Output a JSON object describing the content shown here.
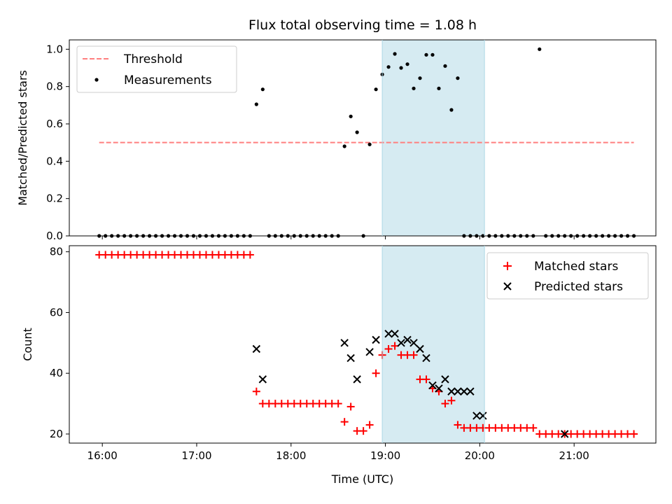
{
  "chart_data": [
    {
      "type": "scatter",
      "title": "Flux total observing time = 1.08 h",
      "xlabel": "",
      "ylabel": "Matched/Predicted stars",
      "ylim": [
        0,
        1.05
      ],
      "yticks": [
        0.0,
        0.2,
        0.4,
        0.6,
        0.8,
        1.0
      ],
      "ytick_labels": [
        "0.0",
        "0.2",
        "0.4",
        "0.6",
        "0.8",
        "1.0"
      ],
      "legend_position": "top-left",
      "highlight_span": {
        "start": "18:58",
        "end": "20:03",
        "color": "#add8e6"
      },
      "series": [
        {
          "name": "Threshold",
          "kind": "dashed-line",
          "color": "#ff7f7f",
          "x": [
            "15:58",
            "21:38"
          ],
          "values": [
            0.5,
            0.5
          ]
        },
        {
          "name": "Measurements",
          "kind": "dots",
          "color": "#000000",
          "x": [
            "15:58",
            "16:02",
            "16:06",
            "16:10",
            "16:14",
            "16:18",
            "16:22",
            "16:26",
            "16:30",
            "16:34",
            "16:38",
            "16:42",
            "16:46",
            "16:50",
            "16:54",
            "16:58",
            "17:02",
            "17:06",
            "17:10",
            "17:14",
            "17:18",
            "17:22",
            "17:26",
            "17:30",
            "17:34",
            "17:38",
            "17:42",
            "17:46",
            "17:50",
            "17:54",
            "17:58",
            "18:02",
            "18:06",
            "18:10",
            "18:14",
            "18:18",
            "18:22",
            "18:26",
            "18:30",
            "18:34",
            "18:38",
            "18:42",
            "18:46",
            "18:50",
            "18:54",
            "18:58",
            "19:02",
            "19:06",
            "19:10",
            "19:14",
            "19:18",
            "19:22",
            "19:26",
            "19:30",
            "19:34",
            "19:38",
            "19:42",
            "19:46",
            "19:50",
            "19:54",
            "19:58",
            "20:02",
            "20:06",
            "20:10",
            "20:14",
            "20:18",
            "20:22",
            "20:26",
            "20:30",
            "20:34",
            "20:38",
            "20:42",
            "20:46",
            "20:50",
            "20:54",
            "20:58",
            "21:02",
            "21:06",
            "21:10",
            "21:14",
            "21:18",
            "21:22",
            "21:26",
            "21:30",
            "21:34",
            "21:38"
          ],
          "values": [
            0,
            0,
            0,
            0,
            0,
            0,
            0,
            0,
            0,
            0,
            0,
            0,
            0,
            0,
            0,
            0,
            0,
            0,
            0,
            0,
            0,
            0,
            0,
            0,
            0,
            0.705,
            0.785,
            0,
            0,
            0,
            0,
            0,
            0,
            0,
            0,
            0,
            0,
            0,
            0,
            0.48,
            0.64,
            0.555,
            0,
            0.49,
            0.785,
            0.865,
            0.905,
            0.975,
            0.9,
            0.92,
            0.79,
            0.845,
            0.97,
            0.97,
            0.79,
            0.91,
            0.675,
            0.845,
            0,
            0,
            0,
            0,
            0,
            0,
            0,
            0,
            0,
            0,
            0,
            0,
            1.0,
            0,
            0,
            0,
            0,
            0,
            0,
            0,
            0,
            0,
            0,
            0,
            0,
            0,
            0,
            0
          ]
        }
      ]
    },
    {
      "type": "scatter",
      "title": "",
      "xlabel": "Time (UTC)",
      "ylabel": "Count",
      "ylim": [
        17,
        82
      ],
      "yticks": [
        20,
        40,
        60,
        80
      ],
      "ytick_labels": [
        "20",
        "40",
        "60",
        "80"
      ],
      "xticks": [
        "16:00",
        "17:00",
        "18:00",
        "19:00",
        "20:00",
        "21:00"
      ],
      "xtick_labels": [
        "16:00",
        "17:00",
        "18:00",
        "19:00",
        "20:00",
        "21:00"
      ],
      "legend_position": "top-right",
      "highlight_span": {
        "start": "18:58",
        "end": "20:03",
        "color": "#add8e6"
      },
      "series": [
        {
          "name": "Matched stars",
          "kind": "plus",
          "color": "#ff0000",
          "x": [
            "15:58",
            "16:02",
            "16:06",
            "16:10",
            "16:14",
            "16:18",
            "16:22",
            "16:26",
            "16:30",
            "16:34",
            "16:38",
            "16:42",
            "16:46",
            "16:50",
            "16:54",
            "16:58",
            "17:02",
            "17:06",
            "17:10",
            "17:14",
            "17:18",
            "17:22",
            "17:26",
            "17:30",
            "17:34",
            "17:38",
            "17:42",
            "17:46",
            "17:50",
            "17:54",
            "17:58",
            "18:02",
            "18:06",
            "18:10",
            "18:14",
            "18:18",
            "18:22",
            "18:26",
            "18:30",
            "18:34",
            "18:38",
            "18:42",
            "18:46",
            "18:50",
            "18:54",
            "18:58",
            "19:02",
            "19:06",
            "19:10",
            "19:14",
            "19:18",
            "19:22",
            "19:26",
            "19:30",
            "19:34",
            "19:38",
            "19:42",
            "19:46",
            "19:50",
            "19:54",
            "19:58",
            "20:02",
            "20:06",
            "20:10",
            "20:14",
            "20:18",
            "20:22",
            "20:26",
            "20:30",
            "20:34",
            "20:38",
            "20:42",
            "20:46",
            "20:50",
            "20:54",
            "20:58",
            "21:02",
            "21:06",
            "21:10",
            "21:14",
            "21:18",
            "21:22",
            "21:26",
            "21:30",
            "21:34",
            "21:38"
          ],
          "values": [
            79,
            79,
            79,
            79,
            79,
            79,
            79,
            79,
            79,
            79,
            79,
            79,
            79,
            79,
            79,
            79,
            79,
            79,
            79,
            79,
            79,
            79,
            79,
            79,
            79,
            34,
            30,
            30,
            30,
            30,
            30,
            30,
            30,
            30,
            30,
            30,
            30,
            30,
            30,
            24,
            29,
            21,
            21,
            23,
            40,
            46,
            48,
            49,
            46,
            46,
            46,
            38,
            38,
            35,
            34,
            30,
            31,
            23,
            22,
            22,
            22,
            22,
            22,
            22,
            22,
            22,
            22,
            22,
            22,
            22,
            20,
            20,
            20,
            20,
            20,
            20,
            20,
            20,
            20,
            20,
            20,
            20,
            20,
            20,
            20,
            20
          ]
        },
        {
          "name": "Predicted stars",
          "kind": "x",
          "color": "#000000",
          "x": [
            "17:38",
            "17:42",
            "18:34",
            "18:38",
            "18:42",
            "18:50",
            "18:54",
            "19:02",
            "19:06",
            "19:10",
            "19:14",
            "19:18",
            "19:22",
            "19:26",
            "19:30",
            "19:34",
            "19:38",
            "19:42",
            "19:46",
            "19:50",
            "19:54",
            "19:58",
            "20:02",
            "20:54"
          ],
          "values": [
            48,
            38,
            50,
            45,
            38,
            47,
            51,
            53,
            53,
            50,
            51,
            50,
            48,
            45,
            36,
            35,
            38,
            34,
            34,
            34,
            34,
            26,
            26,
            20
          ]
        }
      ]
    }
  ]
}
